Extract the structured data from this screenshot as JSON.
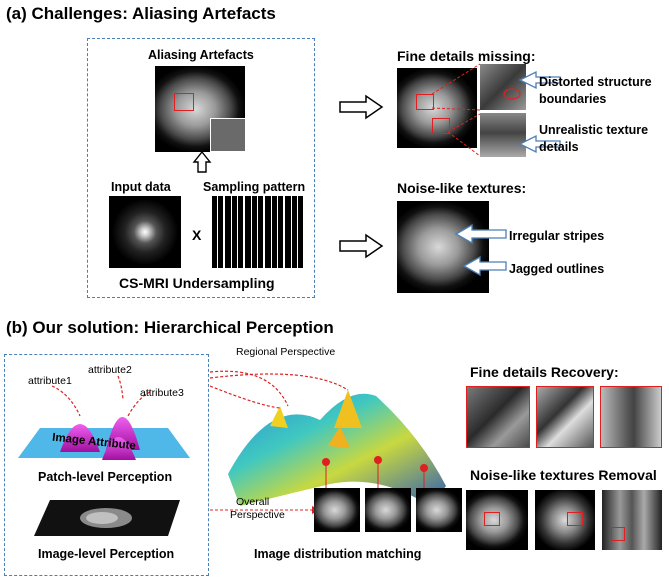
{
  "section_a": {
    "title": "(a) Challenges: Aliasing Artefacts",
    "aliasing_label": "Aliasing Artefacts",
    "input_label": "Input data",
    "sampling_label": "Sampling pattern",
    "multiply_symbol": "X",
    "undersampling_label": "CS-MRI Undersampling",
    "fine_details_title": "Fine details missing:",
    "distorted_line1": "Distorted structure",
    "distorted_line2": "boundaries",
    "unrealistic_line1": "Unrealistic texture",
    "unrealistic_line2": "details",
    "noise_title": "Noise-like textures:",
    "irregular_label": "Irregular stripes",
    "jagged_label": "Jagged outlines"
  },
  "section_b": {
    "title": "(b) Our solution: Hierarchical Perception",
    "attribute1": "attribute1",
    "attribute2": "attribute2",
    "attribute3": "attribute3",
    "image_attribute": "Image Attribute",
    "patch_level": "Patch-level Perception",
    "image_level": "Image-level Perception",
    "regional": "Regional Perspective",
    "overall_line1": "Overall",
    "overall_line2": "Perspective",
    "distribution": "Image distribution matching",
    "recovery_title": "Fine details Recovery:",
    "removal_title": "Noise-like textures Removal"
  },
  "colors": {
    "dash_border": "#4a7fb8",
    "red": "#e02020",
    "peak_magenta": "#c020c0",
    "plane_blue": "#4fb8e8"
  }
}
